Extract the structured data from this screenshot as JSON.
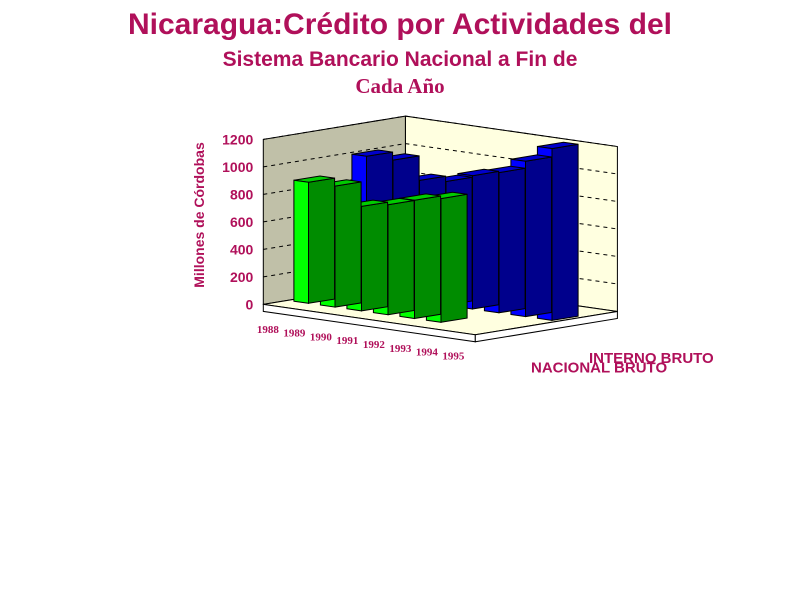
{
  "title_line1": "Nicaragua:Crédito por Actividades del",
  "title_line2": "Sistema Bancario Nacional a Fin de",
  "title_line3": "Cada Año",
  "colors": {
    "title": "#b0105a",
    "interno": "#0000ff",
    "nacional": "#00ff00",
    "wall": "#ffffe0",
    "side_wall": "#c0c0a8"
  },
  "chart_data": {
    "type": "bar",
    "subtype": "3d-clustered-depth",
    "categories": [
      "1988",
      "1989",
      "1990",
      "1991",
      "1992",
      "1993",
      "1994",
      "1995"
    ],
    "ylabel": "Millones de Córdobas",
    "ylim": [
      0,
      1200
    ],
    "yticks": [
      0,
      200,
      400,
      600,
      800,
      1000,
      1200
    ],
    "grid": true,
    "series": [
      {
        "name": "NACIONAL BRUTO",
        "color": "#00ff00",
        "values": [
          880,
          880,
          760,
          800,
          860,
          900,
          null,
          null
        ]
      },
      {
        "name": "INTERNO BRUTO",
        "color": "#0000ff",
        "values": [
          1000,
          1000,
          880,
          900,
          970,
          1020,
          1130,
          1250
        ]
      }
    ]
  }
}
